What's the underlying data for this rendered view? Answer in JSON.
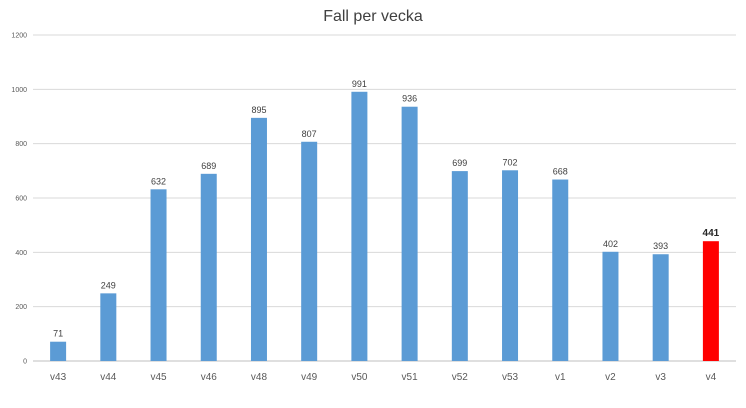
{
  "chart_data": {
    "type": "bar",
    "title": "Fall per vecka",
    "xlabel": "",
    "ylabel": "",
    "categories": [
      "v43",
      "v44",
      "v45",
      "v46",
      "v48",
      "v49",
      "v50",
      "v51",
      "v52",
      "v53",
      "v1",
      "v2",
      "v3",
      "v4"
    ],
    "values": [
      71,
      249,
      632,
      689,
      895,
      807,
      991,
      936,
      699,
      702,
      668,
      402,
      393,
      441
    ],
    "ylim": [
      0,
      1200
    ],
    "yticks": [
      0,
      200,
      400,
      600,
      800,
      1000,
      1200
    ],
    "grid": true,
    "legend": "none",
    "data_labels": true,
    "colors": {
      "bar": "#5b9bd5",
      "highlight": "#ff0000",
      "grid": "#d9d9d9",
      "axis": "#bfbfbf"
    },
    "highlight_category": "v4"
  }
}
